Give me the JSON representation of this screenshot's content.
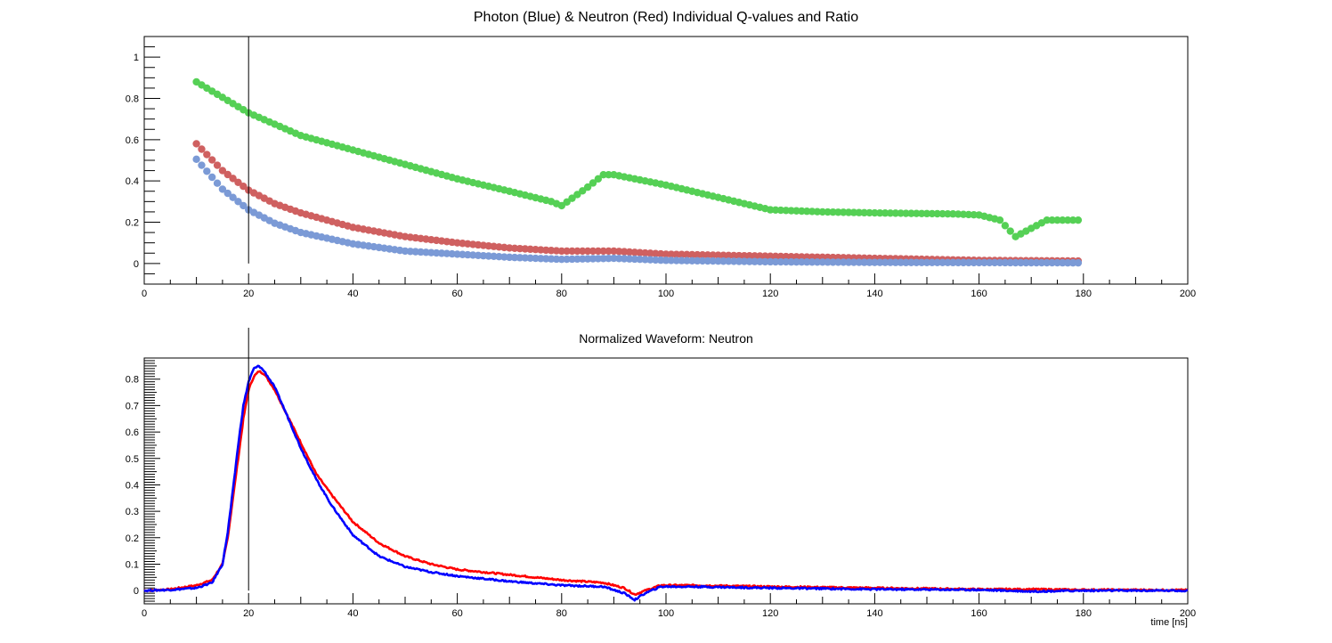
{
  "chart_data": [
    {
      "type": "scatter",
      "title": "Photon (Blue) & Neutron (Red) Individual Q-values and Ratio",
      "xlabel": "",
      "ylabel": "",
      "xlim": [
        0,
        200
      ],
      "ylim": [
        -0.1,
        1.1
      ],
      "x_ticks": [
        "0",
        "20",
        "40",
        "60",
        "80",
        "100",
        "120",
        "140",
        "160",
        "180",
        "200"
      ],
      "y_ticks": [
        "0",
        "0.2",
        "0.4",
        "0.6",
        "0.8",
        "1"
      ],
      "marker_line_x": 20,
      "x_sampling": {
        "start": 10,
        "end": 179,
        "step": 1
      },
      "series": [
        {
          "color": "#55d055",
          "keypoints": [
            [
              10,
              0.88
            ],
            [
              20,
              0.73
            ],
            [
              30,
              0.62
            ],
            [
              40,
              0.55
            ],
            [
              50,
              0.48
            ],
            [
              60,
              0.41
            ],
            [
              70,
              0.35
            ],
            [
              78,
              0.3
            ],
            [
              80,
              0.28
            ],
            [
              85,
              0.37
            ],
            [
              88,
              0.43
            ],
            [
              90,
              0.43
            ],
            [
              100,
              0.38
            ],
            [
              110,
              0.32
            ],
            [
              120,
              0.26
            ],
            [
              130,
              0.25
            ],
            [
              140,
              0.245
            ],
            [
              155,
              0.24
            ],
            [
              160,
              0.235
            ],
            [
              164,
              0.21
            ],
            [
              167,
              0.13
            ],
            [
              170,
              0.17
            ],
            [
              173,
              0.21
            ],
            [
              179,
              0.21
            ]
          ]
        },
        {
          "color": "#cf6060",
          "keypoints": [
            [
              10,
              0.58
            ],
            [
              15,
              0.45
            ],
            [
              20,
              0.355
            ],
            [
              25,
              0.29
            ],
            [
              30,
              0.245
            ],
            [
              40,
              0.175
            ],
            [
              50,
              0.13
            ],
            [
              60,
              0.1
            ],
            [
              70,
              0.075
            ],
            [
              80,
              0.06
            ],
            [
              90,
              0.06
            ],
            [
              100,
              0.045
            ],
            [
              120,
              0.035
            ],
            [
              140,
              0.025
            ],
            [
              160,
              0.015
            ],
            [
              179,
              0.012
            ]
          ]
        },
        {
          "color": "#7b9ad6",
          "keypoints": [
            [
              10,
              0.505
            ],
            [
              15,
              0.36
            ],
            [
              20,
              0.26
            ],
            [
              25,
              0.195
            ],
            [
              30,
              0.15
            ],
            [
              40,
              0.095
            ],
            [
              50,
              0.06
            ],
            [
              60,
              0.045
            ],
            [
              70,
              0.03
            ],
            [
              80,
              0.02
            ],
            [
              90,
              0.025
            ],
            [
              100,
              0.015
            ],
            [
              120,
              0.008
            ],
            [
              140,
              0.005
            ],
            [
              179,
              0.003
            ]
          ]
        }
      ]
    },
    {
      "type": "line",
      "title": "Normalized Waveform: Neutron",
      "xlabel": "time [ns]",
      "ylabel": "",
      "xlim": [
        0,
        200
      ],
      "ylim": [
        -0.05,
        0.88
      ],
      "x_ticks": [
        "0",
        "20",
        "40",
        "60",
        "80",
        "100",
        "120",
        "140",
        "160",
        "180",
        "200"
      ],
      "y_ticks": [
        "0",
        "0.1",
        "0.2",
        "0.3",
        "0.4",
        "0.5",
        "0.6",
        "0.7",
        "0.8"
      ],
      "marker_line_x": 20,
      "series": [
        {
          "color": "#ff0000",
          "points": [
            [
              0,
              0
            ],
            [
              5,
              0.005
            ],
            [
              10,
              0.02
            ],
            [
              13,
              0.04
            ],
            [
              15,
              0.1
            ],
            [
              16,
              0.2
            ],
            [
              17,
              0.35
            ],
            [
              18,
              0.5
            ],
            [
              19,
              0.65
            ],
            [
              20,
              0.76
            ],
            [
              21,
              0.81
            ],
            [
              22,
              0.83
            ],
            [
              23,
              0.82
            ],
            [
              25,
              0.76
            ],
            [
              27,
              0.68
            ],
            [
              30,
              0.56
            ],
            [
              33,
              0.44
            ],
            [
              36,
              0.36
            ],
            [
              40,
              0.26
            ],
            [
              45,
              0.18
            ],
            [
              50,
              0.13
            ],
            [
              55,
              0.1
            ],
            [
              60,
              0.08
            ],
            [
              70,
              0.06
            ],
            [
              80,
              0.04
            ],
            [
              88,
              0.03
            ],
            [
              92,
              0.01
            ],
            [
              94,
              -0.015
            ],
            [
              96,
              0.0
            ],
            [
              99,
              0.02
            ],
            [
              105,
              0.02
            ],
            [
              120,
              0.015
            ],
            [
              140,
              0.01
            ],
            [
              160,
              0.005
            ],
            [
              170,
              0.005
            ],
            [
              180,
              0.003
            ],
            [
              200,
              0.002
            ]
          ]
        },
        {
          "color": "#0000ff",
          "points": [
            [
              0,
              0
            ],
            [
              5,
              0.003
            ],
            [
              10,
              0.01
            ],
            [
              13,
              0.03
            ],
            [
              15,
              0.1
            ],
            [
              16,
              0.22
            ],
            [
              17,
              0.38
            ],
            [
              18,
              0.55
            ],
            [
              19,
              0.7
            ],
            [
              20,
              0.79
            ],
            [
              21,
              0.84
            ],
            [
              22,
              0.85
            ],
            [
              23,
              0.83
            ],
            [
              25,
              0.77
            ],
            [
              27,
              0.68
            ],
            [
              30,
              0.54
            ],
            [
              33,
              0.42
            ],
            [
              36,
              0.32
            ],
            [
              40,
              0.21
            ],
            [
              45,
              0.13
            ],
            [
              50,
              0.09
            ],
            [
              55,
              0.07
            ],
            [
              60,
              0.055
            ],
            [
              70,
              0.035
            ],
            [
              80,
              0.02
            ],
            [
              88,
              0.015
            ],
            [
              92,
              -0.01
            ],
            [
              94,
              -0.035
            ],
            [
              96,
              -0.01
            ],
            [
              99,
              0.015
            ],
            [
              105,
              0.015
            ],
            [
              120,
              0.01
            ],
            [
              140,
              0.005
            ],
            [
              160,
              0.003
            ],
            [
              170,
              -0.003
            ],
            [
              180,
              0.0
            ],
            [
              200,
              0.0
            ]
          ]
        }
      ]
    }
  ]
}
